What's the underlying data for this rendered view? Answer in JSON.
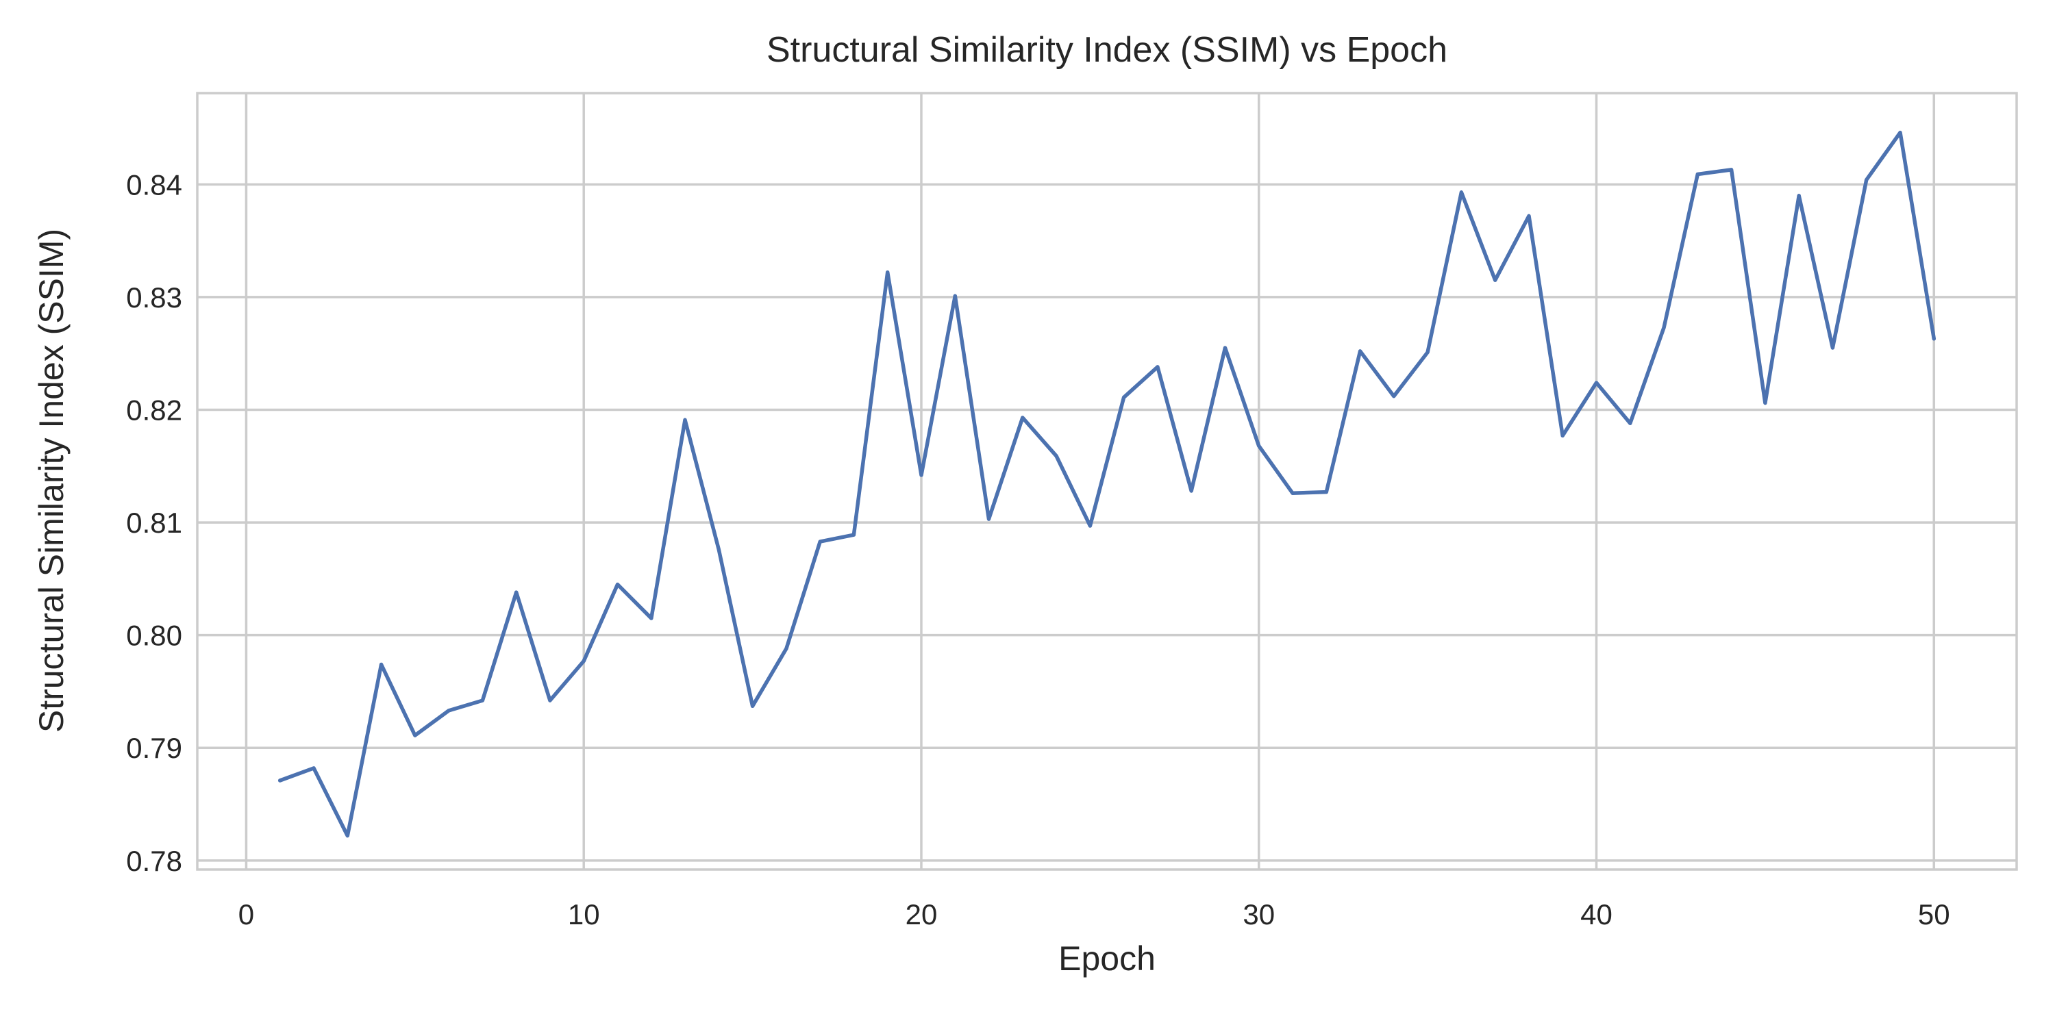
{
  "chart_data": {
    "type": "line",
    "title": "Structural Similarity Index (SSIM) vs Epoch",
    "xlabel": "Epoch",
    "ylabel": "Structural Similarity Index (SSIM)",
    "xlim": [
      -1.45,
      52.45
    ],
    "ylim": [
      0.7792,
      0.8481
    ],
    "x_ticks": [
      0,
      10,
      20,
      30,
      40,
      50
    ],
    "x_tick_labels": [
      "0",
      "10",
      "20",
      "30",
      "40",
      "50"
    ],
    "y_ticks": [
      0.78,
      0.79,
      0.8,
      0.81,
      0.82,
      0.83,
      0.84
    ],
    "y_tick_labels": [
      "0.78",
      "0.79",
      "0.80",
      "0.81",
      "0.82",
      "0.83",
      "0.84"
    ],
    "grid": true,
    "legend": false,
    "line_color": "#4c72b0",
    "grid_color": "#cccccc",
    "x": [
      1,
      2,
      3,
      4,
      5,
      6,
      7,
      8,
      9,
      10,
      11,
      12,
      13,
      14,
      15,
      16,
      17,
      18,
      19,
      20,
      21,
      22,
      23,
      24,
      25,
      26,
      27,
      28,
      29,
      30,
      31,
      32,
      33,
      34,
      35,
      36,
      37,
      38,
      39,
      40,
      41,
      42,
      43,
      44,
      45,
      46,
      47,
      48,
      49,
      50
    ],
    "y": [
      0.7871,
      0.7882,
      0.7822,
      0.7974,
      0.7911,
      0.7933,
      0.7942,
      0.8038,
      0.7942,
      0.7977,
      0.8045,
      0.8015,
      0.8191,
      0.8076,
      0.7937,
      0.7988,
      0.8083,
      0.8089,
      0.8322,
      0.8142,
      0.8301,
      0.8103,
      0.8193,
      0.8159,
      0.8097,
      0.8211,
      0.8238,
      0.8128,
      0.8255,
      0.8168,
      0.8126,
      0.8127,
      0.8252,
      0.8212,
      0.8251,
      0.8393,
      0.8315,
      0.8372,
      0.8177,
      0.8224,
      0.8188,
      0.8273,
      0.8409,
      0.8413,
      0.8206,
      0.839,
      0.8255,
      0.8404,
      0.8446,
      0.8263
    ]
  }
}
